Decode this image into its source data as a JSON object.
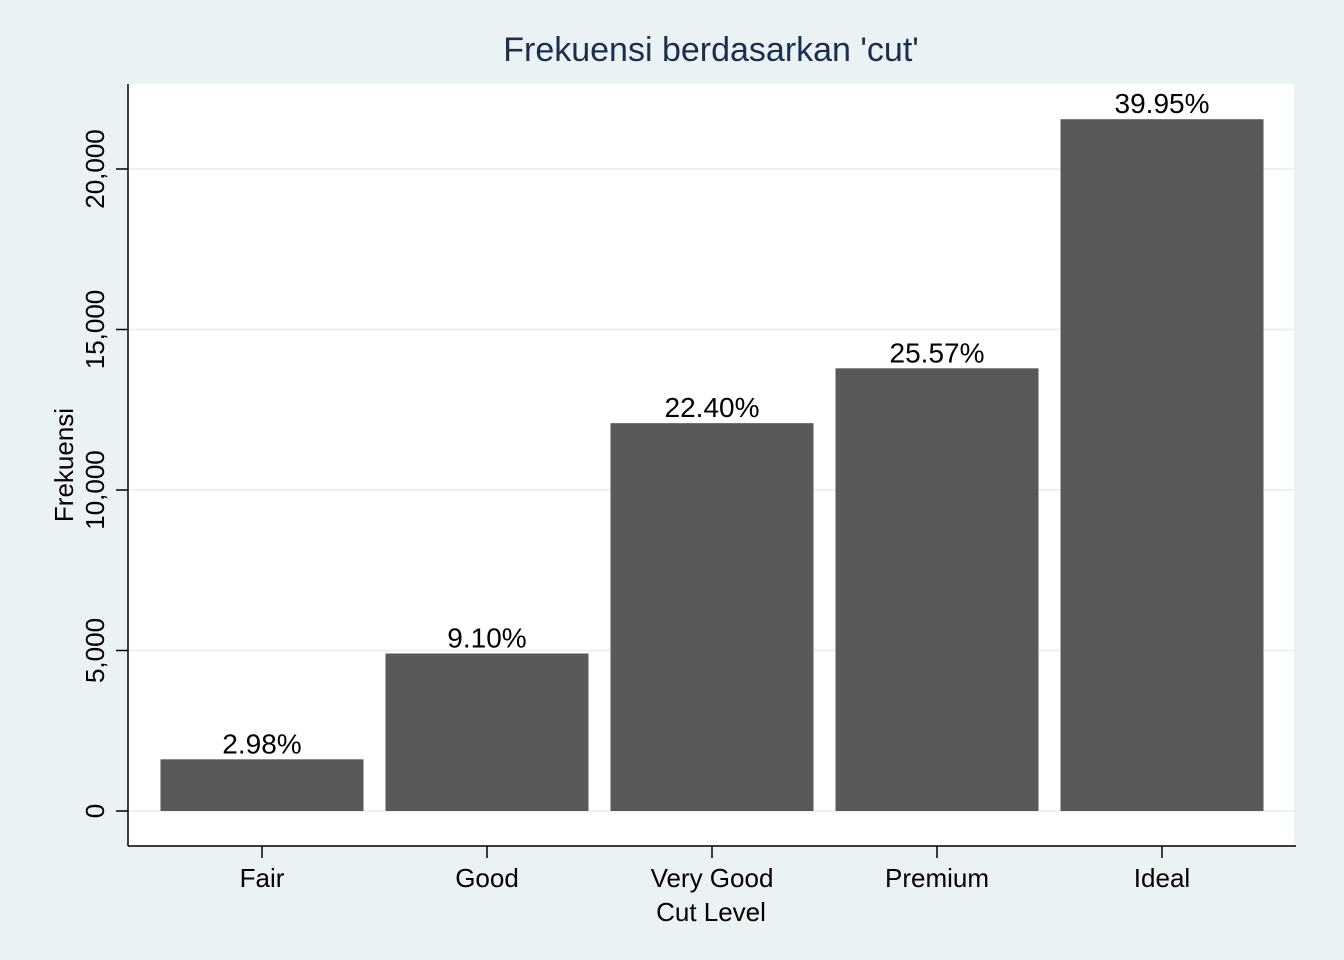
{
  "chart_data": {
    "type": "bar",
    "title": "Frekuensi berdasarkan 'cut'",
    "xlabel": "Cut Level",
    "ylabel": "Frekuensi",
    "categories": [
      "Fair",
      "Good",
      "Very Good",
      "Premium",
      "Ideal"
    ],
    "values": [
      1610,
      4906,
      12082,
      13791,
      21551
    ],
    "data_labels": [
      "2.98%",
      "9.10%",
      "22.40%",
      "25.57%",
      "39.95%"
    ],
    "yticks": [
      0,
      5000,
      10000,
      15000,
      20000
    ],
    "ytick_labels": [
      "0",
      "5,000",
      "10,000",
      "15,000",
      "20,000"
    ],
    "ylim": [
      0,
      22600
    ],
    "grid": true,
    "colors": {
      "bar": "#595959",
      "background": "#eaf2f3",
      "plot_background": "#ffffff",
      "grid": "#eaf2f3",
      "title": "#1a2e4f"
    }
  }
}
